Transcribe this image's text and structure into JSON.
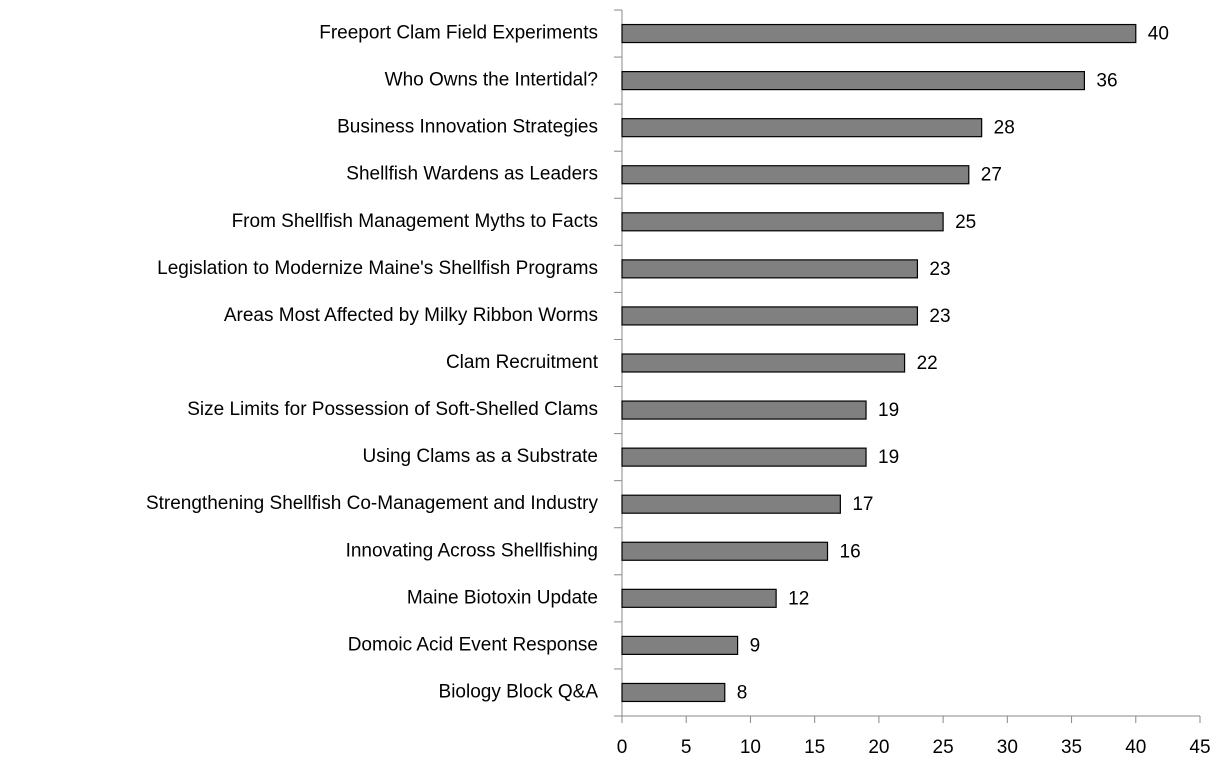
{
  "chart_data": {
    "type": "hbar",
    "categories": [
      "Freeport Clam Field Experiments",
      "Who Owns the Intertidal?",
      "Business Innovation Strategies",
      "Shellfish Wardens as Leaders",
      "From Shellfish Management Myths to Facts",
      "Legislation to Modernize Maine's Shellfish Programs",
      "Areas Most Affected by Milky Ribbon Worms",
      "Clam Recruitment",
      "Size Limits for Possession of Soft-Shelled Clams",
      "Using Clams as a Substrate",
      "Strengthening Shellfish Co-Management and Industry",
      "Innovating Across Shellfishing",
      "Maine Biotoxin Update",
      "Domoic Acid Event Response",
      "Biology Block Q&A"
    ],
    "values": [
      40,
      36,
      28,
      27,
      25,
      23,
      23,
      22,
      19,
      19,
      17,
      16,
      12,
      9,
      8
    ],
    "color": "#808080",
    "xlim": [
      0,
      45
    ],
    "xticks": [
      0,
      5,
      10,
      15,
      20,
      25,
      30,
      35,
      40,
      45
    ]
  }
}
